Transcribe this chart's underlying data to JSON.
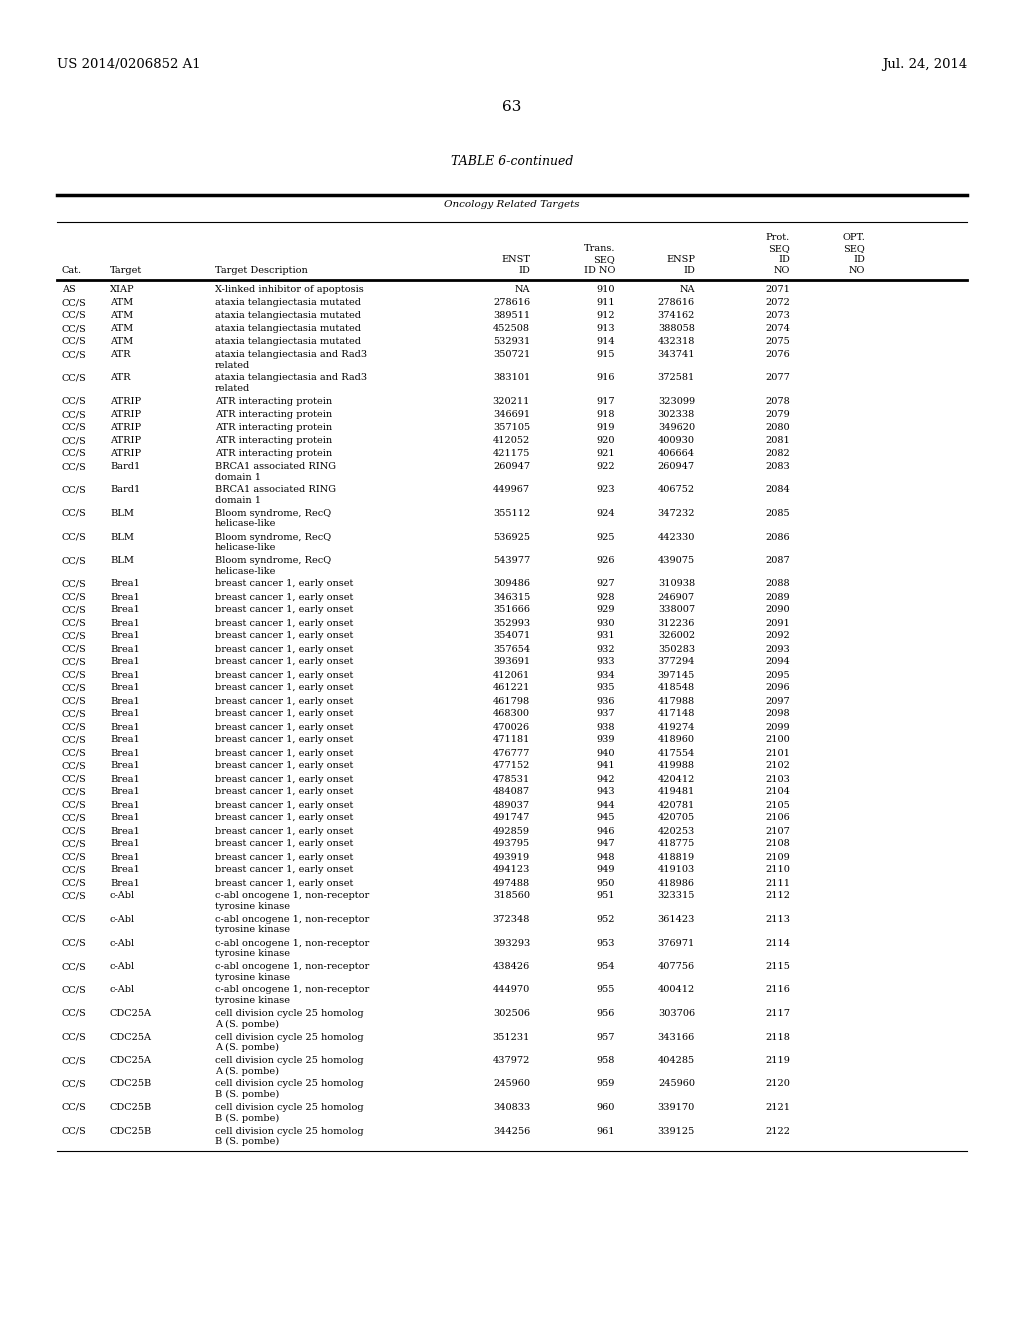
{
  "header_left": "US 2014/0206852 A1",
  "header_right": "Jul. 24, 2014",
  "page_number": "63",
  "table_title": "TABLE 6-continued",
  "table_subtitle": "Oncology Related Targets",
  "rows": [
    [
      "AS",
      "XIAP",
      "X-linked inhibitor of apoptosis",
      "NA",
      "910",
      "NA",
      "2071",
      ""
    ],
    [
      "CC/S",
      "ATM",
      "ataxia telangiectasia mutated",
      "278616",
      "911",
      "278616",
      "2072",
      ""
    ],
    [
      "CC/S",
      "ATM",
      "ataxia telangiectasia mutated",
      "389511",
      "912",
      "374162",
      "2073",
      ""
    ],
    [
      "CC/S",
      "ATM",
      "ataxia telangiectasia mutated",
      "452508",
      "913",
      "388058",
      "2074",
      ""
    ],
    [
      "CC/S",
      "ATM",
      "ataxia telangiectasia mutated",
      "532931",
      "914",
      "432318",
      "2075",
      ""
    ],
    [
      "CC/S",
      "ATR",
      "ataxia telangiectasia and Rad3\nrelated",
      "350721",
      "915",
      "343741",
      "2076",
      ""
    ],
    [
      "CC/S",
      "ATR",
      "ataxia telangiectasia and Rad3\nrelated",
      "383101",
      "916",
      "372581",
      "2077",
      ""
    ],
    [
      "CC/S",
      "ATRIP",
      "ATR interacting protein",
      "320211",
      "917",
      "323099",
      "2078",
      ""
    ],
    [
      "CC/S",
      "ATRIP",
      "ATR interacting protein",
      "346691",
      "918",
      "302338",
      "2079",
      ""
    ],
    [
      "CC/S",
      "ATRIP",
      "ATR interacting protein",
      "357105",
      "919",
      "349620",
      "2080",
      ""
    ],
    [
      "CC/S",
      "ATRIP",
      "ATR interacting protein",
      "412052",
      "920",
      "400930",
      "2081",
      ""
    ],
    [
      "CC/S",
      "ATRIP",
      "ATR interacting protein",
      "421175",
      "921",
      "406664",
      "2082",
      ""
    ],
    [
      "CC/S",
      "Bard1",
      "BRCA1 associated RING\ndomain 1",
      "260947",
      "922",
      "260947",
      "2083",
      ""
    ],
    [
      "CC/S",
      "Bard1",
      "BRCA1 associated RING\ndomain 1",
      "449967",
      "923",
      "406752",
      "2084",
      ""
    ],
    [
      "CC/S",
      "BLM",
      "Bloom syndrome, RecQ\nhelicase-like",
      "355112",
      "924",
      "347232",
      "2085",
      ""
    ],
    [
      "CC/S",
      "BLM",
      "Bloom syndrome, RecQ\nhelicase-like",
      "536925",
      "925",
      "442330",
      "2086",
      ""
    ],
    [
      "CC/S",
      "BLM",
      "Bloom syndrome, RecQ\nhelicase-like",
      "543977",
      "926",
      "439075",
      "2087",
      ""
    ],
    [
      "CC/S",
      "Brea1",
      "breast cancer 1, early onset",
      "309486",
      "927",
      "310938",
      "2088",
      ""
    ],
    [
      "CC/S",
      "Brea1",
      "breast cancer 1, early onset",
      "346315",
      "928",
      "246907",
      "2089",
      ""
    ],
    [
      "CC/S",
      "Brea1",
      "breast cancer 1, early onset",
      "351666",
      "929",
      "338007",
      "2090",
      ""
    ],
    [
      "CC/S",
      "Brea1",
      "breast cancer 1, early onset",
      "352993",
      "930",
      "312236",
      "2091",
      ""
    ],
    [
      "CC/S",
      "Brea1",
      "breast cancer 1, early onset",
      "354071",
      "931",
      "326002",
      "2092",
      ""
    ],
    [
      "CC/S",
      "Brea1",
      "breast cancer 1, early onset",
      "357654",
      "932",
      "350283",
      "2093",
      ""
    ],
    [
      "CC/S",
      "Brea1",
      "breast cancer 1, early onset",
      "393691",
      "933",
      "377294",
      "2094",
      ""
    ],
    [
      "CC/S",
      "Brea1",
      "breast cancer 1, early onset",
      "412061",
      "934",
      "397145",
      "2095",
      ""
    ],
    [
      "CC/S",
      "Brea1",
      "breast cancer 1, early onset",
      "461221",
      "935",
      "418548",
      "2096",
      ""
    ],
    [
      "CC/S",
      "Brea1",
      "breast cancer 1, early onset",
      "461798",
      "936",
      "417988",
      "2097",
      ""
    ],
    [
      "CC/S",
      "Brea1",
      "breast cancer 1, early onset",
      "468300",
      "937",
      "417148",
      "2098",
      ""
    ],
    [
      "CC/S",
      "Brea1",
      "breast cancer 1, early onset",
      "470026",
      "938",
      "419274",
      "2099",
      ""
    ],
    [
      "CC/S",
      "Brea1",
      "breast cancer 1, early onset",
      "471181",
      "939",
      "418960",
      "2100",
      ""
    ],
    [
      "CC/S",
      "Brea1",
      "breast cancer 1, early onset",
      "476777",
      "940",
      "417554",
      "2101",
      ""
    ],
    [
      "CC/S",
      "Brea1",
      "breast cancer 1, early onset",
      "477152",
      "941",
      "419988",
      "2102",
      ""
    ],
    [
      "CC/S",
      "Brea1",
      "breast cancer 1, early onset",
      "478531",
      "942",
      "420412",
      "2103",
      ""
    ],
    [
      "CC/S",
      "Brea1",
      "breast cancer 1, early onset",
      "484087",
      "943",
      "419481",
      "2104",
      ""
    ],
    [
      "CC/S",
      "Brea1",
      "breast cancer 1, early onset",
      "489037",
      "944",
      "420781",
      "2105",
      ""
    ],
    [
      "CC/S",
      "Brea1",
      "breast cancer 1, early onset",
      "491747",
      "945",
      "420705",
      "2106",
      ""
    ],
    [
      "CC/S",
      "Brea1",
      "breast cancer 1, early onset",
      "492859",
      "946",
      "420253",
      "2107",
      ""
    ],
    [
      "CC/S",
      "Brea1",
      "breast cancer 1, early onset",
      "493795",
      "947",
      "418775",
      "2108",
      ""
    ],
    [
      "CC/S",
      "Brea1",
      "breast cancer 1, early onset",
      "493919",
      "948",
      "418819",
      "2109",
      ""
    ],
    [
      "CC/S",
      "Brea1",
      "breast cancer 1, early onset",
      "494123",
      "949",
      "419103",
      "2110",
      ""
    ],
    [
      "CC/S",
      "Brea1",
      "breast cancer 1, early onset",
      "497488",
      "950",
      "418986",
      "2111",
      ""
    ],
    [
      "CC/S",
      "c-Abl",
      "c-abl oncogene 1, non-receptor\ntyrosine kinase",
      "318560",
      "951",
      "323315",
      "2112",
      ""
    ],
    [
      "CC/S",
      "c-Abl",
      "c-abl oncogene 1, non-receptor\ntyrosine kinase",
      "372348",
      "952",
      "361423",
      "2113",
      ""
    ],
    [
      "CC/S",
      "c-Abl",
      "c-abl oncogene 1, non-receptor\ntyrosine kinase",
      "393293",
      "953",
      "376971",
      "2114",
      ""
    ],
    [
      "CC/S",
      "c-Abl",
      "c-abl oncogene 1, non-receptor\ntyrosine kinase",
      "438426",
      "954",
      "407756",
      "2115",
      ""
    ],
    [
      "CC/S",
      "c-Abl",
      "c-abl oncogene 1, non-receptor\ntyrosine kinase",
      "444970",
      "955",
      "400412",
      "2116",
      ""
    ],
    [
      "CC/S",
      "CDC25A",
      "cell division cycle 25 homolog\nA (S. pombe)",
      "302506",
      "956",
      "303706",
      "2117",
      ""
    ],
    [
      "CC/S",
      "CDC25A",
      "cell division cycle 25 homolog\nA (S. pombe)",
      "351231",
      "957",
      "343166",
      "2118",
      ""
    ],
    [
      "CC/S",
      "CDC25A",
      "cell division cycle 25 homolog\nA (S. pombe)",
      "437972",
      "958",
      "404285",
      "2119",
      ""
    ],
    [
      "CC/S",
      "CDC25B",
      "cell division cycle 25 homolog\nB (S. pombe)",
      "245960",
      "959",
      "245960",
      "2120",
      ""
    ],
    [
      "CC/S",
      "CDC25B",
      "cell division cycle 25 homolog\nB (S. pombe)",
      "340833",
      "960",
      "339170",
      "2121",
      ""
    ],
    [
      "CC/S",
      "CDC25B",
      "cell division cycle 25 homolog\nB (S. pombe)",
      "344256",
      "961",
      "339125",
      "2122",
      ""
    ]
  ],
  "bg_color": "#ffffff",
  "text_color": "#000000",
  "font_size": 7.0,
  "header_font_size": 9.5,
  "page_num_font_size": 11
}
